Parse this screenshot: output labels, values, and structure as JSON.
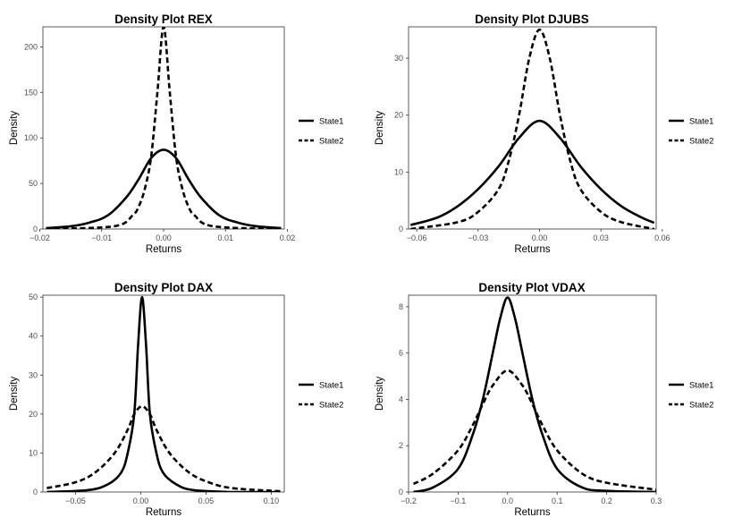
{
  "chart_data": [
    {
      "type": "line",
      "title": "Density Plot REX",
      "xlabel": "Returns",
      "ylabel": "Density",
      "xlim": [
        -0.0195,
        0.0195
      ],
      "ylim": [
        0,
        222
      ],
      "xticks": [
        -0.02,
        -0.01,
        0,
        0.01,
        0.02
      ],
      "xtick_labels": [
        "−0.02",
        "−0.01",
        "0.00",
        "0.01",
        "0.02"
      ],
      "yticks": [
        0,
        50,
        100,
        150,
        200
      ],
      "ytick_labels": [
        "0",
        "50",
        "100",
        "150",
        "200"
      ],
      "legend_position": "right",
      "series": [
        {
          "name": "State1",
          "linestyle": "solid",
          "x": [
            -0.019,
            -0.015,
            -0.012,
            -0.009,
            -0.006,
            -0.004,
            -0.002,
            0,
            0.002,
            0.004,
            0.006,
            0.009,
            0.012,
            0.015,
            0.019
          ],
          "y": [
            1,
            3,
            7,
            15,
            35,
            55,
            78,
            87,
            78,
            55,
            35,
            15,
            7,
            3,
            1
          ]
        },
        {
          "name": "State2",
          "linestyle": "dashed",
          "x": [
            -0.019,
            -0.008,
            -0.005,
            -0.004,
            -0.003,
            -0.002,
            -0.001,
            0,
            0.001,
            0.002,
            0.003,
            0.004,
            0.005,
            0.008,
            0.019
          ],
          "y": [
            0,
            3,
            15,
            25,
            45,
            80,
            150,
            222,
            150,
            80,
            45,
            25,
            15,
            3,
            0
          ]
        }
      ]
    },
    {
      "type": "line",
      "title": "Density Plot DJUBS",
      "xlabel": "Returns",
      "ylabel": "Density",
      "xlim": [
        -0.064,
        0.057
      ],
      "ylim": [
        0,
        35.5
      ],
      "xticks": [
        -0.06,
        -0.03,
        0,
        0.03,
        0.06
      ],
      "xtick_labels": [
        "−0.06",
        "−0.03",
        "0.00",
        "0.03",
        "0.06"
      ],
      "yticks": [
        0,
        10,
        20,
        30
      ],
      "ytick_labels": [
        "0",
        "10",
        "20",
        "30"
      ],
      "legend_position": "right",
      "series": [
        {
          "name": "State1",
          "linestyle": "solid",
          "x": [
            -0.063,
            -0.05,
            -0.04,
            -0.03,
            -0.02,
            -0.01,
            0,
            0.01,
            0.02,
            0.03,
            0.04,
            0.05,
            0.056
          ],
          "y": [
            0.7,
            2,
            4,
            7,
            11,
            16,
            19,
            16,
            11,
            7,
            4,
            2,
            1.1
          ]
        },
        {
          "name": "State2",
          "linestyle": "dashed",
          "x": [
            -0.063,
            -0.04,
            -0.03,
            -0.02,
            -0.015,
            -0.01,
            -0.005,
            0,
            0.005,
            0.01,
            0.015,
            0.02,
            0.03,
            0.04,
            0.056
          ],
          "y": [
            0,
            1.2,
            3,
            7,
            12,
            20,
            30,
            35,
            30,
            20,
            12,
            7,
            3,
            1.2,
            0
          ]
        }
      ]
    },
    {
      "type": "line",
      "title": "Density Plot DAX",
      "xlabel": "Returns",
      "ylabel": "Density",
      "xlim": [
        -0.075,
        0.11
      ],
      "ylim": [
        0,
        50.5
      ],
      "xticks": [
        -0.05,
        0,
        0.05,
        0.1
      ],
      "xtick_labels": [
        "−0.05",
        "0.00",
        "0.05",
        "0.10"
      ],
      "yticks": [
        0,
        10,
        20,
        30,
        40,
        50
      ],
      "ytick_labels": [
        "0",
        "10",
        "20",
        "30",
        "40",
        "50"
      ],
      "legend_position": "right",
      "series": [
        {
          "name": "State1",
          "linestyle": "solid",
          "x": [
            -0.072,
            -0.04,
            -0.025,
            -0.015,
            -0.01,
            -0.005,
            -0.002,
            0.001,
            0.004,
            0.007,
            0.012,
            0.017,
            0.027,
            0.04,
            0.07,
            0.107
          ],
          "y": [
            0,
            0.5,
            2,
            5,
            10,
            20,
            38,
            50,
            38,
            20,
            10,
            5,
            2,
            0.5,
            0,
            0
          ]
        },
        {
          "name": "State2",
          "linestyle": "dashed",
          "x": [
            -0.072,
            -0.05,
            -0.035,
            -0.02,
            -0.01,
            -0.005,
            0.001,
            0.007,
            0.012,
            0.022,
            0.037,
            0.052,
            0.07,
            0.107
          ],
          "y": [
            1,
            2.5,
            5,
            10,
            16,
            20,
            22,
            20,
            16,
            10,
            5,
            2.5,
            1,
            0.2
          ]
        }
      ]
    },
    {
      "type": "line",
      "title": "Density Plot VDAX",
      "xlabel": "Returns",
      "ylabel": "Density",
      "xlim": [
        -0.2,
        0.3
      ],
      "ylim": [
        0,
        8.5
      ],
      "xticks": [
        -0.2,
        -0.1,
        0,
        0.1,
        0.2,
        0.3
      ],
      "xtick_labels": [
        "−0.2",
        "−0.1",
        "0.0",
        "0.1",
        "0.2",
        "0.3"
      ],
      "yticks": [
        0,
        2,
        4,
        6,
        8
      ],
      "ytick_labels": [
        "0",
        "2",
        "4",
        "6",
        "8"
      ],
      "legend_position": "right",
      "series": [
        {
          "name": "State1",
          "linestyle": "solid",
          "x": [
            -0.19,
            -0.15,
            -0.1,
            -0.07,
            -0.05,
            -0.03,
            -0.015,
            0,
            0.015,
            0.03,
            0.05,
            0.07,
            0.1,
            0.15,
            0.2,
            0.3
          ],
          "y": [
            0,
            0.2,
            1,
            2.5,
            4,
            6,
            7.5,
            8.4,
            7.5,
            6,
            4,
            2.5,
            1,
            0.2,
            0.05,
            0
          ]
        },
        {
          "name": "State2",
          "linestyle": "dashed",
          "x": [
            -0.19,
            -0.15,
            -0.1,
            -0.07,
            -0.05,
            -0.03,
            0,
            0.03,
            0.05,
            0.07,
            0.1,
            0.15,
            0.2,
            0.3
          ],
          "y": [
            0.35,
            0.8,
            1.8,
            2.9,
            3.8,
            4.6,
            5.25,
            4.6,
            3.8,
            2.9,
            1.8,
            0.8,
            0.4,
            0.1
          ]
        }
      ]
    }
  ]
}
